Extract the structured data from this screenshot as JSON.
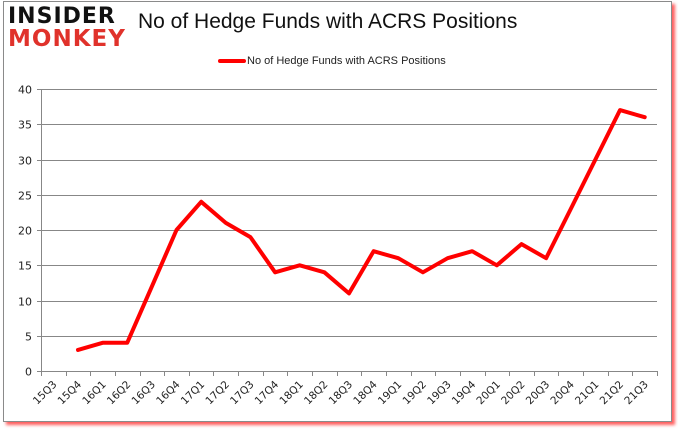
{
  "header": {
    "logo_top": "INSIDER",
    "logo_bottom": "MONKEY",
    "title": "No of Hedge Funds with ACRS Positions"
  },
  "legend": {
    "label": "No of Hedge Funds with ACRS Positions",
    "color": "#ff0000"
  },
  "colors": {
    "line": "#ff0000",
    "grid": "#878787",
    "logo_top": "#111111",
    "logo_bottom": "#e0322b",
    "frame_shadow": "#ff2828"
  },
  "chart_data": {
    "type": "line",
    "title": "No of Hedge Funds with ACRS Positions",
    "xlabel": "",
    "ylabel": "",
    "ylim": [
      0,
      40
    ],
    "yticks": [
      0,
      5,
      10,
      15,
      20,
      25,
      30,
      35,
      40
    ],
    "grid": true,
    "legend_position": "top",
    "categories": [
      "15Q3",
      "15Q4",
      "16Q1",
      "16Q2",
      "16Q3",
      "16Q4",
      "17Q1",
      "17Q2",
      "17Q3",
      "17Q4",
      "18Q1",
      "18Q2",
      "18Q3",
      "18Q4",
      "19Q1",
      "19Q2",
      "19Q3",
      "19Q4",
      "20Q1",
      "20Q2",
      "20Q3",
      "20Q4",
      "21Q1",
      "21Q2",
      "21Q3"
    ],
    "series": [
      {
        "name": "No of Hedge Funds with ACRS Positions",
        "values": [
          null,
          3,
          4,
          4,
          12,
          20,
          24,
          21,
          19,
          14,
          15,
          14,
          11,
          17,
          16,
          14,
          16,
          17,
          15,
          18,
          16,
          23,
          30,
          37,
          36
        ]
      }
    ]
  }
}
